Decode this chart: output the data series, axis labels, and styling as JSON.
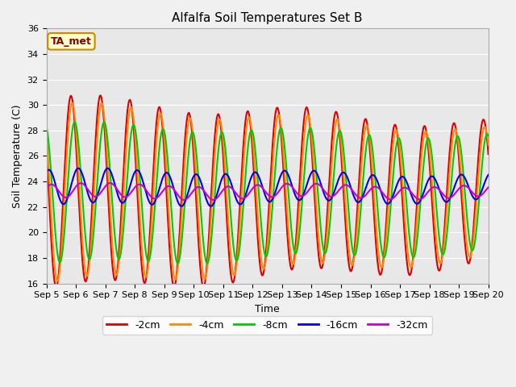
{
  "title": "Alfalfa Soil Temperatures Set B",
  "xlabel": "Time",
  "ylabel": "Soil Temperature (C)",
  "ylim": [
    16,
    36
  ],
  "yticks": [
    16,
    18,
    20,
    22,
    24,
    26,
    28,
    30,
    32,
    34,
    36
  ],
  "annotation": "TA_met",
  "bg_color": "#e8e8e8",
  "series": {
    "-2cm": {
      "color": "#dd0000",
      "lw": 1.5
    },
    "-4cm": {
      "color": "#ff8800",
      "lw": 1.5
    },
    "-8cm": {
      "color": "#00cc00",
      "lw": 1.5
    },
    "-16cm": {
      "color": "#0000ee",
      "lw": 1.5
    },
    "-32cm": {
      "color": "#cc00cc",
      "lw": 1.5
    }
  },
  "x_labels": [
    "Sep 5",
    "Sep 6",
    "Sep 7",
    "Sep 8",
    "Sep 9",
    "Sep 10",
    "Sep 11",
    "Sep 12",
    "Sep 13",
    "Sep 14",
    "Sep 15",
    "Sep 16",
    "Sep 17",
    "Sep 18",
    "Sep 19",
    "Sep 20"
  ],
  "n_days": 15,
  "start_day": 5
}
